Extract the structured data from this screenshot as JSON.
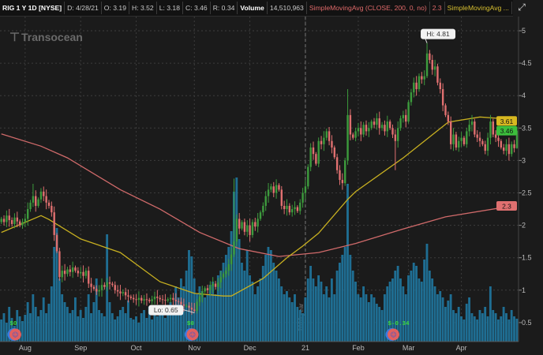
{
  "header": {
    "symbol": "RIG 1 Y 1D [NYSE]",
    "date": "D: 4/28/21",
    "open": "O: 3.19",
    "high": "H: 3.52",
    "low": "L: 3.18",
    "close": "C: 3.46",
    "range": "R: 0.34",
    "volume_label": "Volume",
    "volume_value": "14,510,963",
    "sma200_label": "SimpleMovingAvg (CLOSE, 200, 0, no)",
    "sma200_value": "2.3",
    "sma50_label": "SimpleMovingAvg ..."
  },
  "logo_text": "Transocean",
  "colors": {
    "background": "#1b1b1b",
    "up": "#3d9b3d",
    "down": "#e07070",
    "volume": "#1f6e93",
    "sma200": "#d06a6a",
    "sma50": "#c8b020",
    "last_price": "#3cbf3c"
  },
  "chart_data": {
    "type": "candlestick",
    "ylim": [
      0.3,
      5.2
    ],
    "yticks": [
      "5",
      "4.5",
      "4",
      "3.5",
      "3",
      "2.5",
      "2",
      "1.5",
      "1",
      "0.5"
    ],
    "ytick_values": [
      5,
      4.5,
      4,
      3.5,
      3,
      2.5,
      2,
      1.5,
      1,
      0.5
    ],
    "xticks": [
      {
        "label": "Aug",
        "bar": 9
      },
      {
        "label": "Sep",
        "bar": 30
      },
      {
        "label": "Oct",
        "bar": 51
      },
      {
        "label": "Nov",
        "bar": 73
      },
      {
        "label": "Dec",
        "bar": 94
      },
      {
        "label": "21",
        "bar": 115
      },
      {
        "label": "Feb",
        "bar": 135
      },
      {
        "label": "Mar",
        "bar": 154
      },
      {
        "label": "Apr",
        "bar": 174
      }
    ],
    "year_separator": {
      "label": "2020 year",
      "bar": 115
    },
    "close": [
      2.1,
      2.05,
      2.15,
      2.08,
      2.02,
      2.12,
      2.06,
      2.0,
      2.05,
      2.1,
      2.25,
      2.35,
      2.45,
      2.3,
      2.4,
      2.52,
      2.45,
      2.35,
      2.3,
      2.2,
      1.85,
      1.6,
      1.2,
      1.3,
      1.25,
      1.32,
      1.28,
      1.35,
      1.3,
      1.26,
      1.28,
      1.22,
      1.3,
      1.1,
      1.05,
      1.02,
      0.98,
      1.0,
      1.08,
      1.05,
      1.12,
      1.1,
      1.08,
      1.0,
      0.98,
      0.95,
      0.97,
      0.92,
      0.9,
      0.88,
      0.86,
      0.85,
      0.88,
      0.84,
      0.86,
      0.85,
      0.83,
      0.86,
      0.9,
      0.88,
      0.86,
      0.85,
      0.84,
      0.86,
      0.88,
      0.85,
      0.83,
      0.82,
      0.78,
      0.76,
      0.76,
      0.73,
      0.7,
      0.68,
      0.82,
      0.9,
      0.98,
      1.03,
      1.0,
      1.06,
      1.1,
      1.05,
      1.12,
      1.2,
      1.25,
      1.3,
      1.4,
      1.55,
      1.75,
      2.1,
      1.95,
      2.05,
      1.9,
      2.0,
      1.85,
      2.05,
      1.98,
      2.1,
      2.2,
      2.3,
      2.45,
      2.55,
      2.6,
      2.5,
      2.62,
      2.55,
      2.3,
      2.25,
      2.3,
      2.2,
      2.25,
      2.28,
      2.22,
      2.35,
      2.5,
      2.6,
      2.9,
      3.2,
      3.1,
      2.95,
      3.3,
      3.25,
      3.35,
      3.45,
      3.3,
      3.2,
      3.05,
      2.85,
      2.7,
      2.65,
      3.0,
      3.7,
      3.4,
      3.35,
      3.45,
      3.5,
      3.4,
      3.55,
      3.45,
      3.5,
      3.6,
      3.55,
      3.65,
      3.5,
      3.55,
      3.45,
      3.6,
      3.5,
      3.4,
      3.3,
      3.5,
      3.65,
      3.7,
      3.6,
      3.9,
      4.05,
      4.2,
      4.1,
      4.3,
      4.25,
      4.3,
      4.65,
      4.55,
      4.4,
      4.45,
      4.2,
      4.1,
      3.85,
      3.7,
      3.6,
      3.25,
      3.4,
      3.2,
      3.3,
      3.35,
      3.25,
      3.45,
      3.55,
      3.6,
      3.4,
      3.35,
      3.3,
      3.25,
      3.15,
      3.35,
      3.6,
      3.4,
      3.35,
      3.3,
      3.2,
      3.15,
      3.25,
      3.1,
      3.25,
      3.19,
      3.46
    ],
    "high_overrides": {
      "12": 2.64,
      "88": 2.72,
      "131": 4.1,
      "161": 4.81,
      "195": 3.52
    },
    "low_overrides": {
      "73": 0.65,
      "149": 2.85,
      "195": 3.18
    },
    "volume_millions": [
      14,
      18,
      12,
      22,
      15,
      10,
      20,
      16,
      13,
      17,
      25,
      18,
      30,
      22,
      16,
      20,
      28,
      18,
      24,
      35,
      60,
      72,
      40,
      30,
      25,
      22,
      18,
      20,
      28,
      16,
      20,
      15,
      22,
      30,
      18,
      25,
      40,
      20,
      18,
      16,
      68,
      25,
      18,
      14,
      16,
      20,
      22,
      18,
      26,
      15,
      14,
      16,
      12,
      18,
      20,
      15,
      22,
      14,
      18,
      16,
      20,
      18,
      15,
      22,
      25,
      18,
      35,
      28,
      40,
      35,
      45,
      58,
      54,
      40,
      30,
      35,
      32,
      28,
      30,
      36,
      38,
      30,
      42,
      45,
      50,
      55,
      60,
      70,
      95,
      104,
      65,
      50,
      45,
      58,
      42,
      38,
      30,
      35,
      40,
      48,
      55,
      60,
      58,
      50,
      45,
      40,
      35,
      30,
      32,
      28,
      25,
      30,
      22,
      20,
      18,
      28,
      40,
      48,
      40,
      35,
      42,
      38,
      30,
      35,
      28,
      40,
      30,
      45,
      50,
      55,
      60,
      100,
      55,
      45,
      38,
      30,
      28,
      35,
      30,
      25,
      30,
      28,
      24,
      22,
      20,
      30,
      35,
      38,
      40,
      45,
      48,
      40,
      35,
      30,
      42,
      45,
      50,
      48,
      40,
      38,
      52,
      62,
      45,
      40,
      35,
      30,
      32,
      28,
      22,
      26,
      30,
      20,
      18,
      22,
      16,
      14,
      24,
      28,
      18,
      16,
      14,
      20,
      18,
      22,
      16,
      35,
      20,
      18,
      14,
      16,
      22,
      18,
      14,
      20,
      16,
      14.5
    ],
    "sma200": [
      [
        0,
        3.41
      ],
      [
        15,
        3.22
      ],
      [
        25,
        3.04
      ],
      [
        45,
        2.55
      ],
      [
        60,
        2.25
      ],
      [
        75,
        1.89
      ],
      [
        90,
        1.64
      ],
      [
        105,
        1.52
      ],
      [
        120,
        1.58
      ],
      [
        134,
        1.72
      ],
      [
        150,
        1.92
      ],
      [
        168,
        2.13
      ],
      [
        195,
        2.31
      ]
    ],
    "sma50": [
      [
        0,
        1.89
      ],
      [
        15,
        2.15
      ],
      [
        18,
        2.09
      ],
      [
        30,
        1.79
      ],
      [
        45,
        1.58
      ],
      [
        60,
        1.13
      ],
      [
        73,
        0.95
      ],
      [
        84,
        0.91
      ],
      [
        87,
        0.91
      ],
      [
        99,
        1.18
      ],
      [
        108,
        1.5
      ],
      [
        114,
        1.68
      ],
      [
        120,
        1.88
      ],
      [
        131,
        2.4
      ],
      [
        134,
        2.52
      ],
      [
        152,
        3.04
      ],
      [
        169,
        3.59
      ],
      [
        181,
        3.67
      ],
      [
        188,
        3.65
      ],
      [
        195,
        3.61
      ]
    ],
    "hi_label": {
      "text": "Hi: 4.81",
      "bar": 161,
      "value": 4.81
    },
    "lo_label": {
      "text": "Lo: 0.65",
      "bar": 73,
      "value": 0.65
    },
    "price_badges": [
      {
        "text": "3.61",
        "value": 3.61,
        "color": "#d8b820",
        "series": "sma50"
      },
      {
        "text": "3.46",
        "value": 3.46,
        "color": "#3cbf3c",
        "series": "last"
      },
      {
        "text": "2.3",
        "value": 2.3,
        "color": "#e07070",
        "series": "sma200"
      }
    ],
    "events": [
      {
        "bar": 5,
        "label": "$0"
      },
      {
        "bar": 72,
        "label": "$0"
      },
      {
        "bar": 148,
        "label": "$-0.34"
      }
    ]
  }
}
